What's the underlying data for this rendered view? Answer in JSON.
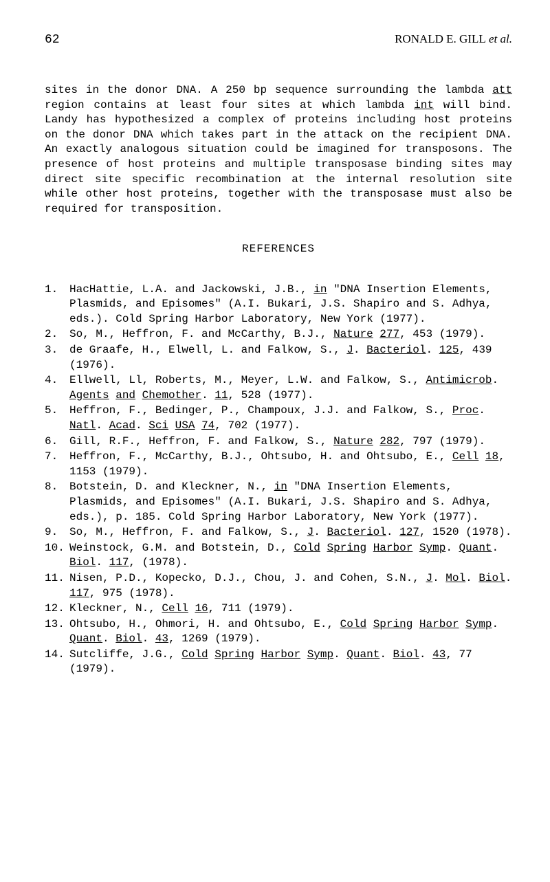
{
  "header": {
    "page_number": "62",
    "running_head_author": "RONALD E. GILL",
    "running_head_suffix": " et al."
  },
  "intro": {
    "text": "sites in the donor DNA. A 250 bp sequence surrounding the lambda <u>att</u> region contains at least four sites at which lambda <u>int</u> will bind. Landy has hypothesized a complex of proteins including host proteins on the donor DNA which takes part in the attack on the recipient DNA. An exactly analogous situation could be imagined for transposons. The presence of host proteins and multiple transposase binding sites may direct site specific recombination at the internal resolution site while other host proteins, together with the transposase must also be required for transposition."
  },
  "references": {
    "heading": "REFERENCES",
    "items": [
      {
        "num": "1.",
        "text": "HacHattie, L.A. and Jackowski, J.B., <u>in</u> \"DNA Insertion Elements, Plasmids, and Episomes\" (A.I. Bukari, J.S. Shapiro and S. Adhya, eds.). Cold Spring Harbor Laboratory, New York (1977)."
      },
      {
        "num": "2.",
        "text": "So, M., Heffron, F. and McCarthy, B.J., <u>Nature</u> <u>277</u>, 453 (1979)."
      },
      {
        "num": "3.",
        "text": "de Graafe, H., Elwell, L. and Falkow, S., <u>J</u>. <u>Bacteriol</u>. <u>125</u>, 439 (1976)."
      },
      {
        "num": "4.",
        "text": "Ellwell, Ll, Roberts, M., Meyer, L.W. and Falkow, S., <u>Antimicrob</u>. <u>Agents</u> <u>and</u> <u>Chemother</u>. <u>11</u>, 528 (1977)."
      },
      {
        "num": "5.",
        "text": "Heffron, F., Bedinger, P., Champoux, J.J. and Falkow, S., <u>Proc</u>. <u>Natl</u>. <u>Acad</u>. <u>Sci</u> <u>USA</u> <u>74</u>, 702 (1977)."
      },
      {
        "num": "6.",
        "text": "Gill, R.F., Heffron, F. and Falkow, S., <u>Nature</u> <u>282</u>, 797 (1979)."
      },
      {
        "num": "7.",
        "text": "Heffron, F., McCarthy, B.J., Ohtsubo, H. and Ohtsubo, E., <u>Cell</u> <u>18</u>, 1153 (1979)."
      },
      {
        "num": "8.",
        "text": "Botstein, D. and Kleckner, N., <u>in</u> \"DNA Insertion Elements, Plasmids, and Episomes\" (A.I. Bukari, J.S. Shapiro and S. Adhya, eds.), p. 185. Cold Spring Harbor Laboratory, New York (1977)."
      },
      {
        "num": "9.",
        "text": "So, M., Heffron, F. and Falkow, S., <u>J</u>. <u>Bacteriol</u>. <u>127</u>, 1520 (1978)."
      },
      {
        "num": "10.",
        "text": "Weinstock, G.M. and Botstein, D., <u>Cold</u> <u>Spring</u> <u>Harbor</u> <u>Symp</u>. <u>Quant</u>. <u>Biol</u>. <u>117</u>, (1978)."
      },
      {
        "num": "11.",
        "text": "Nisen, P.D., Kopecko, D.J., Chou, J. and Cohen, S.N., <u>J</u>. <u>Mol</u>. <u>Biol</u>. <u>117</u>, 975 (1978)."
      },
      {
        "num": "12.",
        "text": "Kleckner, N., <u>Cell</u> <u>16</u>, 711 (1979)."
      },
      {
        "num": "13.",
        "text": "Ohtsubo, H., Ohmori, H. and Ohtsubo, E., <u>Cold</u> <u>Spring</u> <u>Harbor</u> <u>Symp</u>. <u>Quant</u>. <u>Biol</u>. <u>43</u>, 1269 (1979)."
      },
      {
        "num": "14.",
        "text": "Sutcliffe, J.G., <u>Cold</u> <u>Spring</u> <u>Harbor</u> <u>Symp</u>. <u>Quant</u>. <u>Biol</u>. <u>43</u>, 77 (1979)."
      }
    ]
  }
}
